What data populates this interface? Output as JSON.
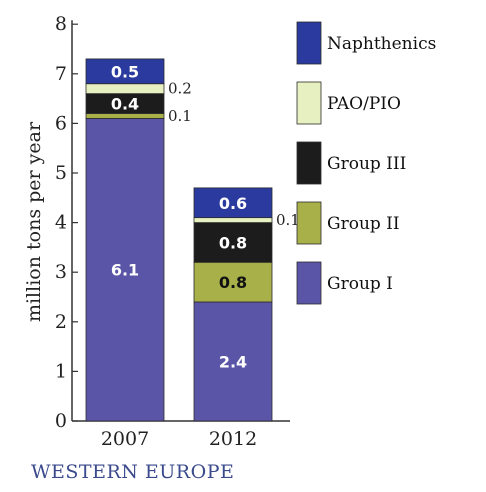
{
  "footer_label": "WESTERN EUROPE",
  "chart_data": {
    "type": "bar",
    "stacked": true,
    "title": "",
    "xlabel": "",
    "ylabel": "million tons per year",
    "ylim": [
      0,
      8
    ],
    "yticks": [
      "0",
      "1",
      "2",
      "3",
      "4",
      "5",
      "6",
      "7",
      "8"
    ],
    "categories": [
      "2007",
      "2012"
    ],
    "series": [
      {
        "name": "Group I",
        "color": "#5b55a8",
        "values": [
          6.1,
          2.4
        ],
        "labels": [
          "6.1",
          "2.4"
        ],
        "label_color": "#ffffff",
        "label_side": [
          false,
          false
        ]
      },
      {
        "name": "Group II",
        "color": "#a8b04a",
        "values": [
          0.1,
          0.8
        ],
        "labels": [
          "0.1",
          "0.8"
        ],
        "label_color": "#111111",
        "label_side": [
          true,
          false
        ]
      },
      {
        "name": "Group III",
        "color": "#1c1c1c",
        "values": [
          0.4,
          0.8
        ],
        "labels": [
          "0.4",
          "0.8"
        ],
        "label_color": "#ffffff",
        "label_side": [
          false,
          false
        ]
      },
      {
        "name": "PAO/PIO",
        "color": "#e7f0c0",
        "values": [
          0.2,
          0.1
        ],
        "labels": [
          "0.2",
          "0.1"
        ],
        "label_color": "#111111",
        "label_side": [
          true,
          true
        ]
      },
      {
        "name": "Naphthenics",
        "color": "#2a3a9e",
        "values": [
          0.5,
          0.6
        ],
        "labels": [
          "0.5",
          "0.6"
        ],
        "label_color": "#ffffff",
        "label_side": [
          false,
          false
        ]
      }
    ],
    "legend_order": [
      "Naphthenics",
      "PAO/PIO",
      "Group III",
      "Group II",
      "Group I"
    ],
    "legend_placement": "right",
    "grid": false
  }
}
